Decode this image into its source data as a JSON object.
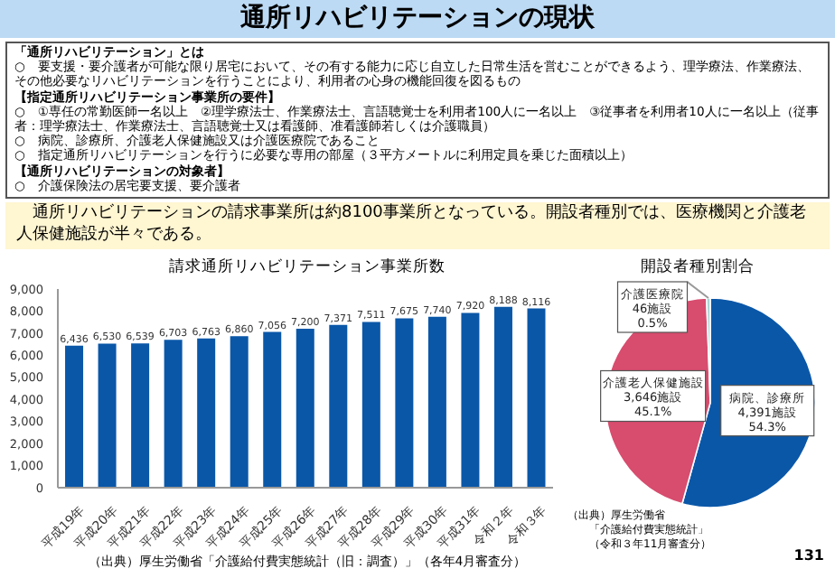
{
  "chart_data": [
    {
      "type": "other",
      "title": "通所リハビリテーションの現状",
      "annotations": [
        "「通所リハビリテーション」とは",
        "○　要支援・要介護者が可能な限り居宅において、その有する能力に応じ自立した日常生活を営むことができるよう、理学療法、作業療法、その他必要なリハビリテーションを行うことにより、利用者の心身の機能回復を図るもの",
        "【指定通所リハビリテーション事業所の要件】",
        "○　①専任の常勤医師一名以上　②理学療法士、作業療法士、言語聴覚士を利用者100人に一名以上　③従事者を利用者10人に一名以上（従事者：理学療法士、作業療法士、言語聴覚士又は看護師、准看護師若しくは介護職員）",
        "○　病院、診療所、介護老人保健施設又は介護医療院であること",
        "○　指定通所リハビリテーションを行うに必要な専用の部屋（３平方メートルに利用定員を乗じた面積以上）",
        "【通所リハビリテーションの対象者】",
        "○　介護保険法の居宅要支援、要介護者",
        "通所リハビリテーションの請求事業所は約8100事業所となっている。開設者種別では、医療機関と介護老人保健施設が半々である。",
        "131"
      ]
    },
    {
      "type": "bar",
      "title": "請求通所リハビリテーション事業所数",
      "categories": [
        "平成19年",
        "平成20年",
        "平成21年",
        "平成22年",
        "平成23年",
        "平成24年",
        "平成25年",
        "平成26年",
        "平成27年",
        "平成28年",
        "平成29年",
        "平成30年",
        "平成31年",
        "令和２年",
        "令和３年"
      ],
      "values": [
        6436,
        6530,
        6539,
        6703,
        6763,
        6860,
        7056,
        7200,
        7371,
        7511,
        7675,
        7740,
        7920,
        8188,
        8116
      ],
      "color": "#0a57a8",
      "value_labels": [
        "6,436",
        "6,530",
        "6,539",
        "6,703",
        "6,763",
        "6,860",
        "7,056",
        "7,200",
        "7,371",
        "7,511",
        "7,675",
        "7,740",
        "7,920",
        "8,188",
        "8,116"
      ],
      "ylim": [
        0,
        9000
      ],
      "yticks": [
        0,
        {
          "value": 1000,
          "label": "1,000"
        },
        {
          "value": 2000,
          "label": "2,000"
        },
        {
          "value": 3000,
          "label": "3,000"
        },
        {
          "value": 4000,
          "label": "4,000"
        },
        {
          "value": 5000,
          "label": "5,000"
        },
        {
          "value": 6000,
          "label": "6,000"
        },
        {
          "value": 7000,
          "label": "7,000"
        },
        {
          "value": 8000,
          "label": "8,000"
        },
        {
          "value": 9000,
          "label": "9,000"
        }
      ],
      "annotations": [
        "（出典）厚生労働省「介護給付費実態統計（旧：調査）」（各年4月審査分）"
      ]
    },
    {
      "type": "pie",
      "title": "開設者種別割合",
      "categories": [
        "病院、診療所",
        "介護老人保健施設",
        "介護医療院"
      ],
      "values": [
        4391,
        3646,
        46
      ],
      "colors": [
        "#0a57a8",
        "#d84c6e",
        "#a9d6d6"
      ],
      "value_labels": [
        "4,391施設\n54.3%",
        "3,646施設\n45.1%",
        "46施設\n0.5%"
      ],
      "annotations": [
        "（出典）厚生労働省",
        "「介護給付費実態統計」",
        "（令和３年11月審査分）"
      ]
    }
  ]
}
